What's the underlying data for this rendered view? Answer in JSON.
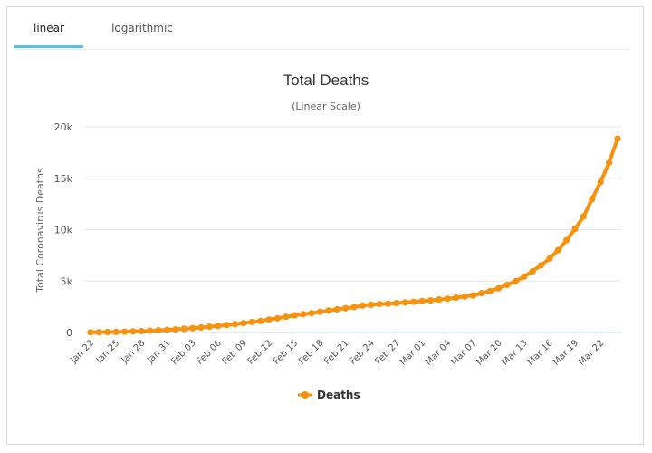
{
  "tabs": [
    {
      "label": "linear",
      "active": true
    },
    {
      "label": "logarithmic",
      "active": false
    }
  ],
  "colors": {
    "series": "#f7920f",
    "tab_accent": "#5bc0de",
    "grid": "#e6e6e6",
    "axis_line": "#c6d5e6"
  },
  "chart_data": {
    "type": "line",
    "title": "Total Deaths",
    "subtitle": "(Linear Scale)",
    "ylabel": "Total Coronavirus Deaths",
    "xlabel": "",
    "ylim": [
      0,
      20000
    ],
    "yticks": [
      0,
      5000,
      10000,
      15000,
      20000
    ],
    "ytick_labels": [
      "0",
      "5k",
      "10k",
      "15k",
      "20k"
    ],
    "x": [
      "Jan 22",
      "Jan 23",
      "Jan 24",
      "Jan 25",
      "Jan 26",
      "Jan 27",
      "Jan 28",
      "Jan 29",
      "Jan 30",
      "Jan 31",
      "Feb 01",
      "Feb 02",
      "Feb 03",
      "Feb 04",
      "Feb 05",
      "Feb 06",
      "Feb 07",
      "Feb 08",
      "Feb 09",
      "Feb 10",
      "Feb 11",
      "Feb 12",
      "Feb 13",
      "Feb 14",
      "Feb 15",
      "Feb 16",
      "Feb 17",
      "Feb 18",
      "Feb 19",
      "Feb 20",
      "Feb 21",
      "Feb 22",
      "Feb 23",
      "Feb 24",
      "Feb 25",
      "Feb 26",
      "Feb 27",
      "Feb 28",
      "Feb 29",
      "Mar 01",
      "Mar 02",
      "Mar 03",
      "Mar 04",
      "Mar 05",
      "Mar 06",
      "Mar 07",
      "Mar 08",
      "Mar 09",
      "Mar 10",
      "Mar 11",
      "Mar 12",
      "Mar 13",
      "Mar 14",
      "Mar 15",
      "Mar 16",
      "Mar 17",
      "Mar 18",
      "Mar 19",
      "Mar 20",
      "Mar 21",
      "Mar 22",
      "Mar 23",
      "Mar 24"
    ],
    "xtick_labels": [
      "Jan 22",
      "Jan 25",
      "Jan 28",
      "Jan 31",
      "Feb 03",
      "Feb 06",
      "Feb 09",
      "Feb 12",
      "Feb 15",
      "Feb 18",
      "Feb 21",
      "Feb 24",
      "Feb 27",
      "Mar 01",
      "Mar 04",
      "Mar 07",
      "Mar 10",
      "Mar 13",
      "Mar 16",
      "Mar 19",
      "Mar 22"
    ],
    "series": [
      {
        "name": "Deaths",
        "values": [
          17,
          25,
          41,
          56,
          80,
          106,
          132,
          170,
          213,
          259,
          304,
          362,
          426,
          492,
          565,
          638,
          724,
          813,
          910,
          1018,
          1115,
          1261,
          1383,
          1526,
          1669,
          1775,
          1873,
          2009,
          2126,
          2247,
          2360,
          2460,
          2618,
          2699,
          2763,
          2800,
          2858,
          2923,
          2977,
          3050,
          3117,
          3202,
          3285,
          3387,
          3494,
          3599,
          3827,
          4025,
          4296,
          4628,
          4981,
          5431,
          5953,
          6537,
          7191,
          8005,
          8968,
          10086,
          11282,
          12971,
          14643,
          16512,
          18851
        ]
      }
    ],
    "legend": {
      "position": "bottom-center"
    },
    "grid": true
  }
}
